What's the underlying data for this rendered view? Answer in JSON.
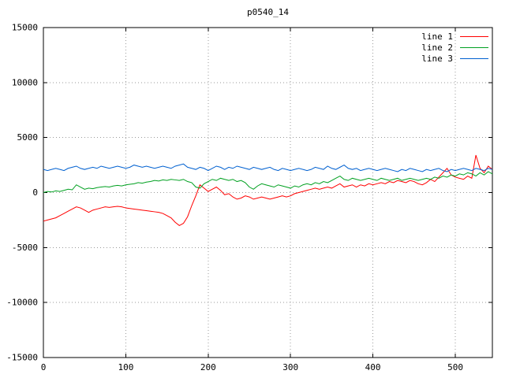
{
  "title": "p0540_14",
  "legend": {
    "items": [
      {
        "label": "line 1",
        "color": "#ff0000"
      },
      {
        "label": "line 2",
        "color": "#00a020"
      },
      {
        "label": "line 3",
        "color": "#0060d0"
      }
    ]
  },
  "chart_data": {
    "type": "line",
    "title": "p0540_14",
    "xlabel": "",
    "ylabel": "",
    "xlim": [
      0,
      545
    ],
    "ylim": [
      -15000,
      15000
    ],
    "x_ticks": [
      0,
      100,
      200,
      300,
      400,
      500
    ],
    "y_ticks": [
      -15000,
      -10000,
      -5000,
      0,
      5000,
      10000,
      15000
    ],
    "grid": true,
    "legend_position": "top-right",
    "x_start": 0,
    "x_step": 5,
    "series": [
      {
        "name": "line 1",
        "color": "#ff0000",
        "values": [
          -2600,
          -2500,
          -2400,
          -2300,
          -2100,
          -1900,
          -1700,
          -1500,
          -1300,
          -1400,
          -1600,
          -1800,
          -1600,
          -1500,
          -1400,
          -1300,
          -1350,
          -1300,
          -1250,
          -1300,
          -1400,
          -1450,
          -1500,
          -1550,
          -1600,
          -1650,
          -1700,
          -1750,
          -1800,
          -1900,
          -2100,
          -2300,
          -2700,
          -3000,
          -2800,
          -2200,
          -1200,
          -300,
          700,
          400,
          100,
          300,
          500,
          200,
          -200,
          -100,
          -400,
          -600,
          -500,
          -300,
          -400,
          -600,
          -500,
          -400,
          -500,
          -600,
          -500,
          -400,
          -300,
          -400,
          -300,
          -100,
          0,
          100,
          200,
          300,
          400,
          300,
          400,
          500,
          400,
          600,
          800,
          500,
          600,
          700,
          500,
          700,
          600,
          800,
          700,
          800,
          900,
          800,
          1000,
          900,
          1100,
          1000,
          900,
          1100,
          1000,
          800,
          700,
          900,
          1200,
          1000,
          1400,
          1800,
          2200,
          1600,
          1400,
          1300,
          1200,
          1500,
          1300,
          3400,
          2200,
          1800,
          2400,
          2100
        ]
      },
      {
        "name": "line 2",
        "color": "#00a020",
        "values": [
          0,
          100,
          50,
          150,
          100,
          200,
          300,
          250,
          700,
          500,
          300,
          400,
          350,
          450,
          500,
          550,
          500,
          600,
          650,
          600,
          700,
          750,
          800,
          900,
          850,
          950,
          1000,
          1100,
          1050,
          1150,
          1100,
          1200,
          1150,
          1100,
          1200,
          1000,
          900,
          500,
          400,
          800,
          1000,
          1200,
          1100,
          1300,
          1200,
          1100,
          1200,
          1000,
          1100,
          900,
          500,
          300,
          600,
          800,
          700,
          600,
          500,
          700,
          600,
          500,
          400,
          600,
          500,
          700,
          800,
          700,
          900,
          800,
          1000,
          900,
          1100,
          1300,
          1500,
          1200,
          1100,
          1300,
          1200,
          1100,
          1200,
          1300,
          1200,
          1100,
          1300,
          1200,
          1100,
          1200,
          1300,
          1100,
          1200,
          1300,
          1200,
          1100,
          1200,
          1300,
          1200,
          1400,
          1300,
          1500,
          1400,
          1600,
          1500,
          1700,
          1600,
          1800,
          1700,
          1500,
          1800,
          1600,
          1900,
          1700
        ]
      },
      {
        "name": "line 3",
        "color": "#0060d0",
        "values": [
          2100,
          2000,
          2100,
          2200,
          2100,
          2000,
          2200,
          2300,
          2400,
          2200,
          2100,
          2200,
          2300,
          2200,
          2400,
          2300,
          2200,
          2300,
          2400,
          2300,
          2200,
          2300,
          2500,
          2400,
          2300,
          2400,
          2300,
          2200,
          2300,
          2400,
          2300,
          2200,
          2400,
          2500,
          2600,
          2300,
          2200,
          2100,
          2300,
          2200,
          2000,
          2200,
          2400,
          2300,
          2100,
          2300,
          2200,
          2400,
          2300,
          2200,
          2100,
          2300,
          2200,
          2100,
          2200,
          2300,
          2100,
          2000,
          2200,
          2100,
          2000,
          2100,
          2200,
          2100,
          2000,
          2100,
          2300,
          2200,
          2100,
          2400,
          2200,
          2100,
          2300,
          2500,
          2200,
          2100,
          2200,
          2000,
          2100,
          2200,
          2100,
          2000,
          2100,
          2200,
          2100,
          2000,
          1900,
          2100,
          2000,
          2200,
          2100,
          2000,
          1900,
          2100,
          2000,
          2100,
          2200,
          2000,
          1900,
          2100,
          2000,
          2100,
          2200,
          2100,
          2000,
          2200,
          2100,
          2000,
          2200,
          2100
        ]
      }
    ]
  }
}
